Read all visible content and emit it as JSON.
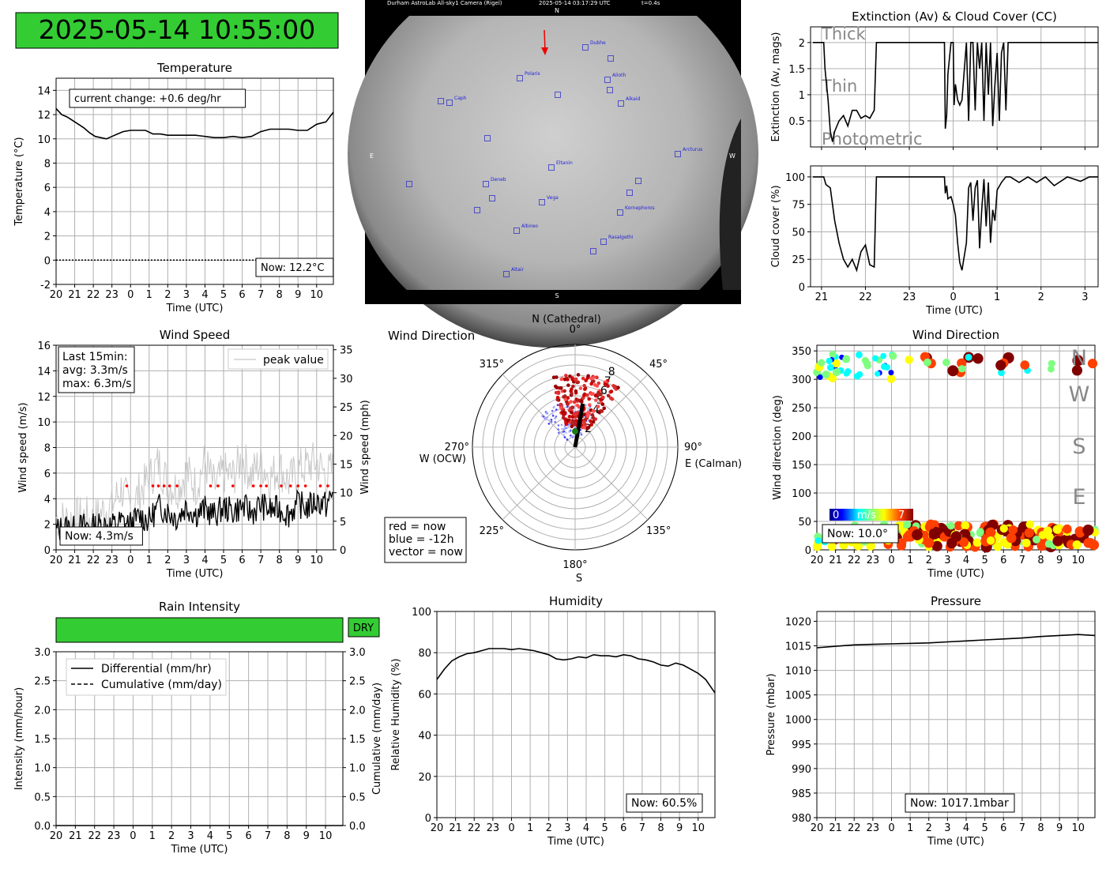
{
  "header": {
    "datetime": "2025-05-14 10:55:00",
    "bg": "#33cc33"
  },
  "colors": {
    "line": "#000000",
    "grid": "#b0b0b0",
    "peak": "#c8c8c8",
    "now_red": "#ff0000",
    "then_blue": "#0000ff"
  },
  "chart_data": [
    {
      "id": "temperature",
      "type": "line",
      "title": "Temperature",
      "xlabel": "Time (UTC)",
      "ylabel": "Temperature (°C)",
      "xticks": [
        "20",
        "21",
        "22",
        "23",
        "0",
        "1",
        "2",
        "3",
        "4",
        "5",
        "6",
        "7",
        "8",
        "9",
        "10"
      ],
      "ylim": [
        -2,
        15
      ],
      "yticks": [
        -2,
        0,
        2,
        4,
        6,
        8,
        10,
        12,
        14
      ],
      "series": [
        {
          "x": [
            0,
            0.3,
            0.6,
            0.9,
            1.2,
            1.5,
            1.8,
            2.1,
            2.4,
            2.7,
            3.0,
            3.3,
            3.6,
            4.0,
            4.4,
            4.8,
            5.2,
            5.6,
            6.0,
            6.5,
            7.0,
            7.5,
            8.0,
            8.5,
            9.0,
            9.5,
            10.0,
            10.5,
            11.0,
            11.5,
            12.0,
            12.5,
            13.0,
            13.5,
            14.0,
            14.5,
            14.9
          ],
          "y": [
            12.5,
            12.0,
            11.8,
            11.5,
            11.2,
            10.9,
            10.5,
            10.2,
            10.1,
            10.0,
            10.2,
            10.4,
            10.6,
            10.7,
            10.7,
            10.7,
            10.4,
            10.4,
            10.3,
            10.3,
            10.3,
            10.3,
            10.2,
            10.1,
            10.1,
            10.2,
            10.1,
            10.2,
            10.6,
            10.8,
            10.8,
            10.8,
            10.7,
            10.7,
            11.2,
            11.4,
            12.2
          ]
        }
      ],
      "zero_line": 0,
      "annotation": "current change: +0.6 deg/hr",
      "now_label": "Now: 12.2°C"
    },
    {
      "id": "extinction",
      "type": "line",
      "title": "Extinction (Av) & Cloud Cover (CC)",
      "ylabel": "Extinction (Av, mags)",
      "ylim": [
        0,
        2.3
      ],
      "yticks": [
        0.5,
        1.0,
        1.5,
        2.0
      ],
      "xticks": [
        "21",
        "22",
        "23",
        "0",
        "1",
        "2",
        "3"
      ],
      "xrange": [
        -3.25,
        3.3
      ],
      "bands": [
        "Thick",
        "Thin",
        "Photometric"
      ],
      "series": [
        {
          "x": [
            -3.2,
            -2.95,
            -2.92,
            -2.85,
            -2.8,
            -2.75,
            -2.7,
            -2.6,
            -2.5,
            -2.4,
            -2.3,
            -2.2,
            -2.1,
            -2.0,
            -1.9,
            -1.8,
            -1.75,
            -1.5,
            -1.0,
            -0.2,
            -0.18,
            -0.15,
            -0.12,
            -0.05,
            0.0,
            0.02,
            0.05,
            0.1,
            0.15,
            0.2,
            0.3,
            0.35,
            0.4,
            0.45,
            0.5,
            0.55,
            0.6,
            0.65,
            0.7,
            0.75,
            0.8,
            0.85,
            0.9,
            0.95,
            1.0,
            1.05,
            1.1,
            1.15,
            1.2,
            1.25,
            1.3,
            1.5,
            2.0,
            3.3
          ],
          "y": [
            2.0,
            2.0,
            1.5,
            0.9,
            0.3,
            0.1,
            0.3,
            0.5,
            0.6,
            0.4,
            0.7,
            0.7,
            0.55,
            0.6,
            0.55,
            0.7,
            2.0,
            2.0,
            2.0,
            2.0,
            0.35,
            0.6,
            1.4,
            2.0,
            2.0,
            0.8,
            1.2,
            0.9,
            0.8,
            0.9,
            2.0,
            0.5,
            2.0,
            2.0,
            0.7,
            2.0,
            1.5,
            2.0,
            0.5,
            2.0,
            1.0,
            2.0,
            0.4,
            1.2,
            1.8,
            0.5,
            1.8,
            2.0,
            0.7,
            2.0,
            2.0,
            2.0,
            2.0,
            2.0
          ]
        }
      ]
    },
    {
      "id": "cloudcover",
      "type": "line",
      "ylabel": "Cloud cover (%)",
      "xlabel": "Time (UTC)",
      "ylim": [
        0,
        110
      ],
      "yticks": [
        0,
        25,
        50,
        75,
        100
      ],
      "xticks": [
        "21",
        "22",
        "23",
        "0",
        "1",
        "2",
        "3"
      ],
      "xrange": [
        -3.25,
        3.3
      ],
      "series": [
        {
          "x": [
            -3.2,
            -2.95,
            -2.9,
            -2.8,
            -2.7,
            -2.6,
            -2.5,
            -2.4,
            -2.3,
            -2.2,
            -2.1,
            -2.0,
            -1.9,
            -1.8,
            -1.75,
            -1.5,
            -1.0,
            -0.2,
            -0.18,
            -0.15,
            -0.12,
            -0.05,
            0.0,
            0.05,
            0.1,
            0.15,
            0.2,
            0.3,
            0.35,
            0.4,
            0.45,
            0.5,
            0.55,
            0.6,
            0.65,
            0.7,
            0.75,
            0.8,
            0.85,
            0.9,
            0.95,
            1.0,
            1.1,
            1.2,
            1.3,
            1.5,
            1.7,
            1.9,
            2.1,
            2.3,
            2.6,
            2.9,
            3.1,
            3.3
          ],
          "y": [
            100,
            100,
            93,
            90,
            60,
            40,
            25,
            18,
            25,
            15,
            32,
            38,
            20,
            18,
            100,
            100,
            100,
            100,
            85,
            92,
            80,
            82,
            75,
            65,
            40,
            22,
            15,
            40,
            90,
            95,
            60,
            90,
            97,
            35,
            70,
            98,
            55,
            95,
            40,
            70,
            60,
            88,
            95,
            100,
            100,
            95,
            100,
            95,
            100,
            92,
            100,
            96,
            100,
            100
          ]
        }
      ]
    },
    {
      "id": "windspeed",
      "type": "line",
      "title": "Wind Speed",
      "xlabel": "Time (UTC)",
      "ylabel": "Wind speed (m/s)",
      "ylabel_right": "Wind speed (mph)",
      "ylim": [
        0,
        16
      ],
      "yticks": [
        0,
        2,
        4,
        6,
        8,
        10,
        12,
        14,
        16
      ],
      "yticks_right": [
        0,
        5,
        10,
        15,
        20,
        25,
        30,
        35
      ],
      "xticks": [
        "20",
        "21",
        "22",
        "23",
        "0",
        "1",
        "2",
        "3",
        "4",
        "5",
        "6",
        "7",
        "8",
        "9",
        "10"
      ],
      "legend": [
        "peak value"
      ],
      "stats": [
        "Last 15min:",
        "avg: 3.3m/s",
        "max: 6.3m/s"
      ],
      "now_label": "Now: 4.3m/s",
      "series": [
        {
          "name": "avg",
          "x": [
            0,
            0.5,
            1,
            1.5,
            2,
            2.5,
            3,
            3.5,
            4,
            4.5,
            5,
            5.5,
            6,
            6.5,
            7,
            7.5,
            8,
            8.5,
            9,
            9.5,
            10,
            10.5,
            11,
            11.5,
            12,
            12.5,
            13,
            13.5,
            14,
            14.5,
            14.9
          ],
          "y": [
            1.5,
            1.8,
            1.6,
            1.9,
            1.8,
            2.0,
            1.9,
            2.2,
            2.0,
            2.6,
            2.3,
            3.4,
            3.0,
            2.5,
            3.4,
            2.8,
            3.2,
            2.7,
            3.3,
            3.0,
            3.4,
            2.9,
            3.5,
            3.1,
            3.2,
            2.8,
            3.6,
            3.3,
            3.8,
            3.5,
            4.3
          ]
        },
        {
          "name": "peak",
          "x": [
            0,
            0.5,
            1,
            1.5,
            2,
            2.5,
            3,
            3.5,
            4,
            4.5,
            5,
            5.5,
            6,
            6.5,
            7,
            7.5,
            8,
            8.5,
            9,
            9.5,
            10,
            10.5,
            11,
            11.5,
            12,
            12.5,
            13,
            13.5,
            14,
            14.5,
            14.9
          ],
          "y": [
            2.5,
            2.3,
            2.4,
            2.6,
            2.2,
            3.0,
            3.5,
            4.8,
            3.2,
            4.6,
            5.5,
            6.8,
            5.2,
            4.8,
            6.1,
            5.0,
            6.9,
            4.9,
            6.0,
            5.7,
            7.2,
            5.8,
            6.9,
            5.6,
            6.5,
            5.3,
            6.2,
            6.6,
            6.9,
            5.8,
            6.3
          ]
        },
        {
          "name": "gust markers",
          "x": [
            3.8,
            5.2,
            5.5,
            5.8,
            6.1,
            6.5,
            8.3,
            8.7,
            9.5,
            10.6,
            11.0,
            11.3,
            12.1,
            12.6,
            13.0,
            13.4,
            14.2,
            14.6
          ],
          "y": [
            5,
            5,
            5,
            5,
            5,
            5,
            5,
            5,
            5,
            5,
            5,
            5,
            5,
            5,
            5,
            5,
            5,
            5
          ]
        }
      ]
    },
    {
      "id": "winddir_polar",
      "type": "scatter",
      "title": "Wind Direction",
      "compass": {
        "N": "N (Cathedral)",
        "E": "E (Calman)",
        "S": "S",
        "W": "W (OCW)"
      },
      "angle_labels": [
        "0°",
        "45°",
        "90°",
        "135°",
        "180°",
        "225°",
        "270°",
        "315°"
      ],
      "radial_ticks": [
        2,
        3,
        4,
        5,
        6,
        7,
        8
      ],
      "rmax": 10,
      "legend_lines": [
        "red = now",
        "blue = -12h",
        "vector = now"
      ],
      "vector": {
        "direction_deg": 10,
        "speed": 4.3
      }
    },
    {
      "id": "winddir_time",
      "type": "scatter",
      "title": "Wind Direction",
      "xlabel": "Time (UTC)",
      "ylabel": "Wind direction (deg)",
      "ylim": [
        0,
        360
      ],
      "yticks": [
        0,
        50,
        100,
        150,
        200,
        250,
        300,
        350
      ],
      "xticks": [
        "20",
        "21",
        "22",
        "23",
        "0",
        "1",
        "2",
        "3",
        "4",
        "5",
        "6",
        "7",
        "8",
        "9",
        "10"
      ],
      "compass_right": [
        "N",
        "W",
        "S",
        "E"
      ],
      "colorbar": {
        "min": "0",
        "label": "m/s",
        "max": "7"
      },
      "now_label": "Now: 10.0°"
    },
    {
      "id": "rain",
      "type": "line",
      "title": "Rain Intensity",
      "xlabel": "Time (UTC)",
      "ylabel": "Intensity (mm/hour)",
      "ylabel_right": "Cumulative (mm/day)",
      "ylim": [
        0,
        3
      ],
      "yticks": [
        "0.0",
        "0.5",
        "1.0",
        "1.5",
        "2.0",
        "2.5",
        "3.0"
      ],
      "xticks": [
        "20",
        "21",
        "22",
        "23",
        "0",
        "1",
        "2",
        "3",
        "4",
        "5",
        "6",
        "7",
        "8",
        "9",
        "10"
      ],
      "status": "DRY",
      "legend": [
        "Differential (mm/hr)",
        "Cumulative (mm/day)"
      ],
      "series": [
        {
          "name": "Differential (mm/hr)",
          "x": [
            0,
            15
          ],
          "y": [
            0,
            0
          ]
        },
        {
          "name": "Cumulative (mm/day)",
          "x": [
            0,
            15
          ],
          "y": [
            0,
            0
          ]
        }
      ]
    },
    {
      "id": "humidity",
      "type": "line",
      "title": "Humidity",
      "xlabel": "Time (UTC)",
      "ylabel": "Relative Humidity (%)",
      "ylim": [
        0,
        100
      ],
      "yticks": [
        0,
        20,
        40,
        60,
        80,
        100
      ],
      "xticks": [
        "20",
        "21",
        "22",
        "23",
        "0",
        "1",
        "2",
        "3",
        "4",
        "5",
        "6",
        "7",
        "8",
        "9",
        "10"
      ],
      "now_label": "Now: 60.5%",
      "series": [
        {
          "x": [
            0,
            0.4,
            0.8,
            1.2,
            1.6,
            2.0,
            2.4,
            2.8,
            3.2,
            3.6,
            4.0,
            4.4,
            4.8,
            5.2,
            5.6,
            6.0,
            6.4,
            6.8,
            7.2,
            7.6,
            8.0,
            8.4,
            8.8,
            9.2,
            9.6,
            10.0,
            10.4,
            10.8,
            11.2,
            11.6,
            12.0,
            12.4,
            12.8,
            13.2,
            13.6,
            14.0,
            14.4,
            14.9
          ],
          "y": [
            67,
            72,
            76,
            78,
            79.5,
            80,
            81,
            82,
            82,
            82,
            81.5,
            82,
            81.5,
            81,
            80,
            79,
            77,
            76.5,
            77,
            78,
            77.5,
            79,
            78.5,
            78.5,
            78,
            79,
            78.5,
            77,
            76.5,
            75.5,
            74,
            73.5,
            75,
            74,
            72,
            70,
            67,
            60.5
          ]
        }
      ]
    },
    {
      "id": "pressure",
      "type": "line",
      "title": "Pressure",
      "xlabel": "Time (UTC)",
      "ylabel": "Pressure (mbar)",
      "ylim": [
        980,
        1022
      ],
      "yticks": [
        980,
        985,
        990,
        995,
        1000,
        1005,
        1010,
        1015,
        1020
      ],
      "xticks": [
        "20",
        "21",
        "22",
        "23",
        "0",
        "1",
        "2",
        "3",
        "4",
        "5",
        "6",
        "7",
        "8",
        "9",
        "10"
      ],
      "now_label": "Now: 1017.1mbar",
      "series": [
        {
          "x": [
            0,
            1,
            2,
            3,
            4,
            5,
            6,
            7,
            8,
            9,
            10,
            11,
            12,
            13,
            14,
            14.9
          ],
          "y": [
            1014.6,
            1014.9,
            1015.2,
            1015.3,
            1015.4,
            1015.5,
            1015.6,
            1015.8,
            1016.0,
            1016.2,
            1016.4,
            1016.6,
            1016.9,
            1017.1,
            1017.3,
            1017.1
          ]
        }
      ]
    }
  ],
  "allsky": {
    "header_left": "Durham AstroLab All-sky1 Camera (Rigel)",
    "header_mid": "2025-05-14 03:17:29 UTC",
    "header_right": "t=0.4s",
    "cardinals": {
      "N": "N",
      "S": "S",
      "E": "E",
      "W": "W"
    },
    "stars": [
      "Dubhe",
      "Polaris",
      "Alioth",
      "Alkaid",
      "Caph",
      "Arcturus",
      "Eltanin",
      "Deneb",
      "Vega",
      "Kornephoros",
      "Albireo",
      "Rasalgethi",
      "Altair"
    ]
  }
}
